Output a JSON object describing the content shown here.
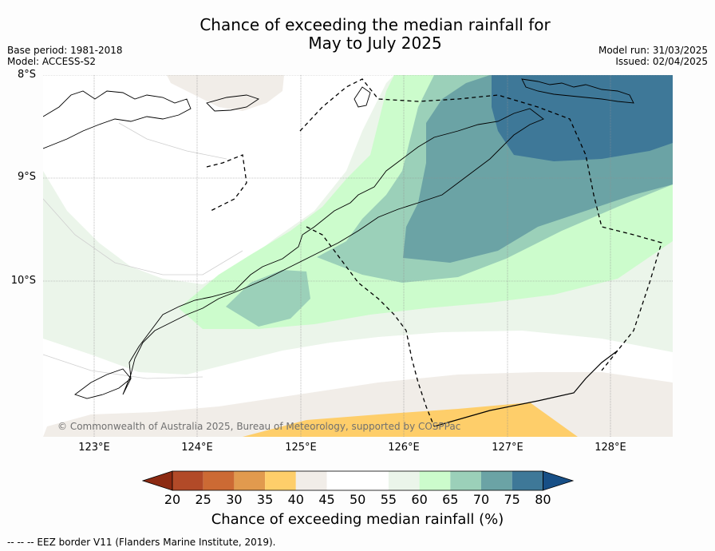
{
  "title": {
    "line1": "Chance of exceeding the median rainfall for",
    "line2": "May to July 2025"
  },
  "meta": {
    "base_period": "Base period: 1981-2018",
    "model": "Model: ACCESS-S2",
    "model_run": "Model run: 31/03/2025",
    "issued": "Issued: 02/04/2025"
  },
  "map": {
    "lat_labels": [
      "8°S",
      "9°S",
      "10°S"
    ],
    "lon_labels": [
      "123°E",
      "124°E",
      "125°E",
      "126°E",
      "127°E",
      "128°E"
    ],
    "extent": {
      "lon_min": 122.5,
      "lon_max": 128.6,
      "lat_top": -8.0,
      "lat_bottom": -11.5
    },
    "credit": "© Commonwealth of Australia 2025, Bureau of Meteorology, supported by COSPPac"
  },
  "colorbar": {
    "ticks": [
      "20",
      "25",
      "30",
      "35",
      "40",
      "45",
      "50",
      "55",
      "60",
      "65",
      "70",
      "75",
      "80"
    ],
    "colors": [
      "#8c2a12",
      "#b24a28",
      "#cc6a34",
      "#e19a4e",
      "#fece6a",
      "#f1ede8",
      "#ffffff",
      "#ffffff",
      "#ebf5ea",
      "#ccfccc",
      "#9bd0b9",
      "#6ba3a5",
      "#3e7898",
      "#174f86"
    ],
    "label": "Chance of exceeding median rainfall (%)"
  },
  "legend": {
    "eez": "--  --  -- EEZ border V11 (Flanders Marine Institute, 2019)."
  }
}
